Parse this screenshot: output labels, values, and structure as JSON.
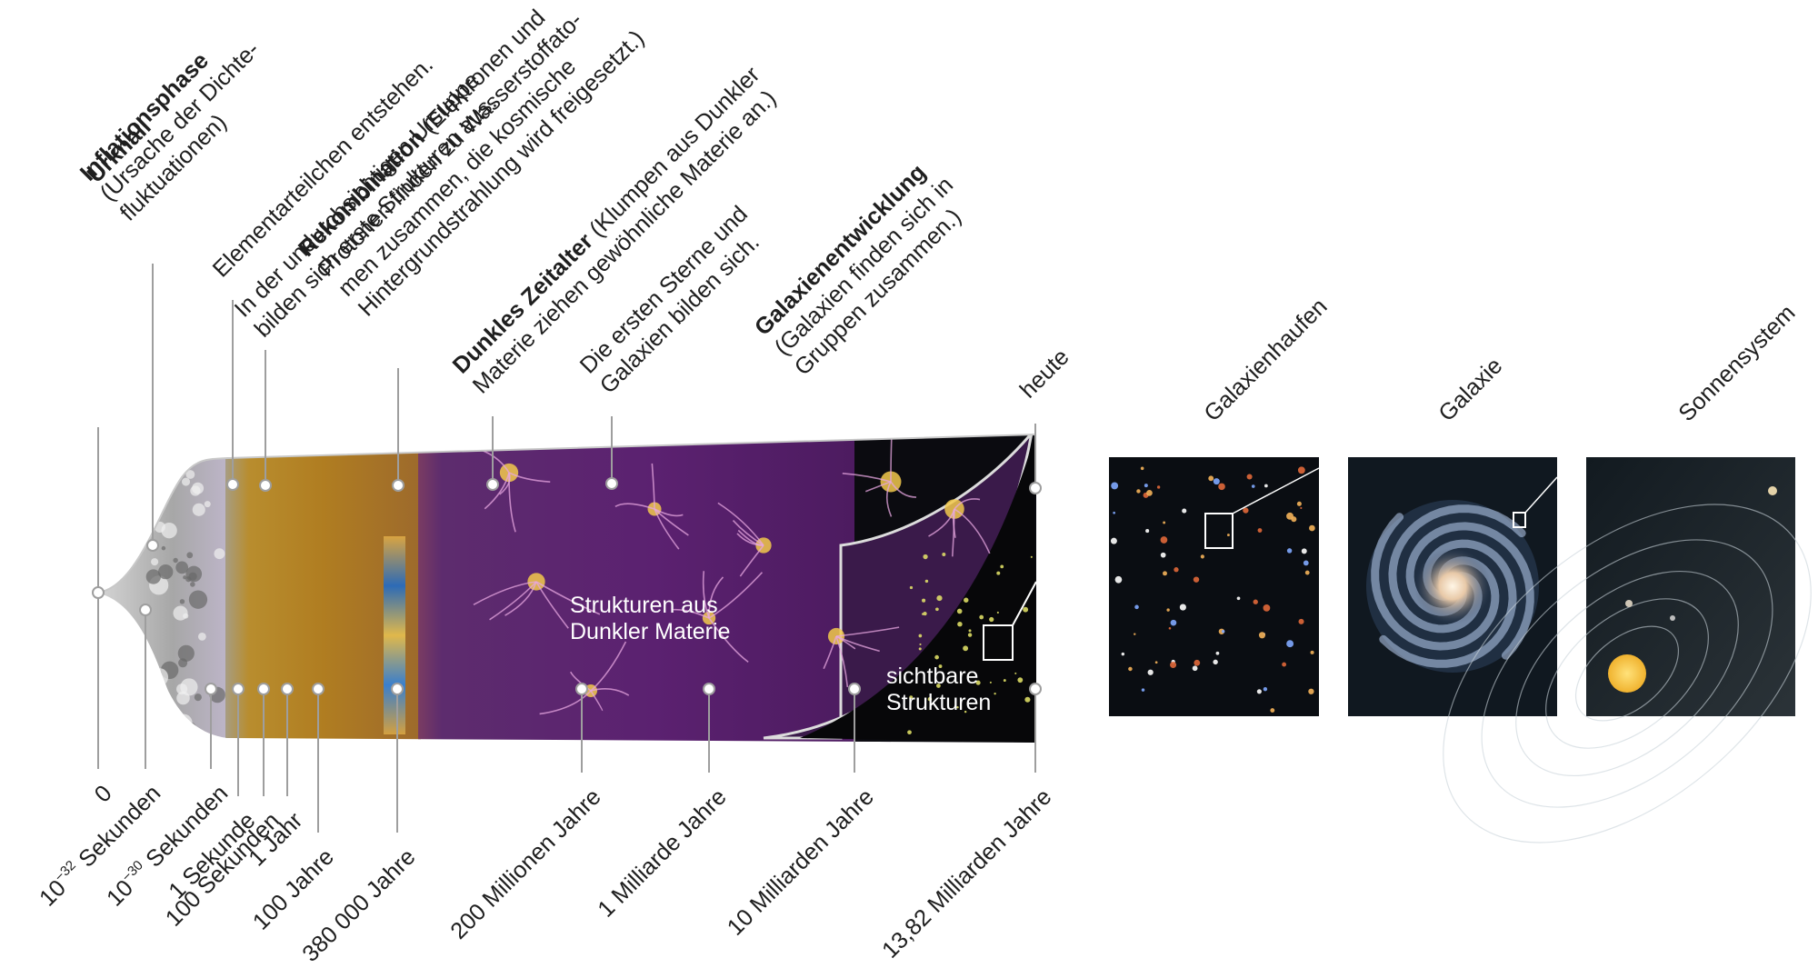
{
  "epochs": [
    {
      "title": "Urknall",
      "lines": []
    },
    {
      "title": "Inflationsphase",
      "lines": [
        "(Ursache der Dichte-",
        "fluktuationen)"
      ]
    },
    {
      "title": "",
      "lines": [
        "Elementarteilchen entstehen."
      ]
    },
    {
      "title": "",
      "lines": [
        "In der undurchsichtigen Ursuppe",
        "bilden sich erste Strukturen aus."
      ]
    },
    {
      "title": "Rekombination",
      "title_rest": " (Elektronen und",
      "lines": [
        "Protonen finden zu Wasserstoffato-",
        "men zusammen, die kosmische",
        "Hintergrundstrahlung wird freigesetzt.)"
      ]
    },
    {
      "title": "Dunkles Zeitalter",
      "title_rest": " (Klumpen aus Dunkler",
      "lines": [
        "Materie ziehen gewöhnliche Materie an.)"
      ]
    },
    {
      "title": "",
      "lines": [
        "Die ersten Sterne und",
        "Galaxien bilden sich."
      ]
    },
    {
      "title": "Galaxienentwicklung",
      "lines": [
        "(Galaxien finden sich in",
        "Gruppen zusammen.)"
      ]
    },
    {
      "title": "",
      "lines": [
        "heute"
      ]
    }
  ],
  "times": [
    {
      "base": "0",
      "exp": "",
      "unit": ""
    },
    {
      "base": "10",
      "exp": "−32",
      "unit": " Sekunden"
    },
    {
      "base": "10",
      "exp": "−30",
      "unit": " Sekunden"
    },
    {
      "base": "1 Sekunde",
      "exp": "",
      "unit": ""
    },
    {
      "base": "100 Sekunden",
      "exp": "",
      "unit": ""
    },
    {
      "base": "1 Jahr",
      "exp": "",
      "unit": ""
    },
    {
      "base": "100 Jahre",
      "exp": "",
      "unit": ""
    },
    {
      "base": "380 000 Jahre",
      "exp": "",
      "unit": ""
    },
    {
      "base": "200 Millionen Jahre",
      "exp": "",
      "unit": ""
    },
    {
      "base": "1 Milliarde Jahre",
      "exp": "",
      "unit": ""
    },
    {
      "base": "10 Milliarden Jahre",
      "exp": "",
      "unit": ""
    },
    {
      "base": "13,82 Milliarden Jahre",
      "exp": "",
      "unit": ""
    }
  ],
  "inner_labels": {
    "dark_matter": [
      "Strukturen aus",
      "Dunkler Materie"
    ],
    "visible": [
      "sichtbare",
      "Strukturen"
    ]
  },
  "panels": [
    "Galaxienhaufen",
    "Galaxie",
    "Sonnensystem"
  ],
  "colors": {
    "inflation_gray": "#9a9a9a",
    "soup_amber": "#b78a2a",
    "dark_purple": "#5a1f6e",
    "filament_yellow": "#f2c94c",
    "space_black": "#0b0b10",
    "leader_line": "#9e9e9e"
  }
}
